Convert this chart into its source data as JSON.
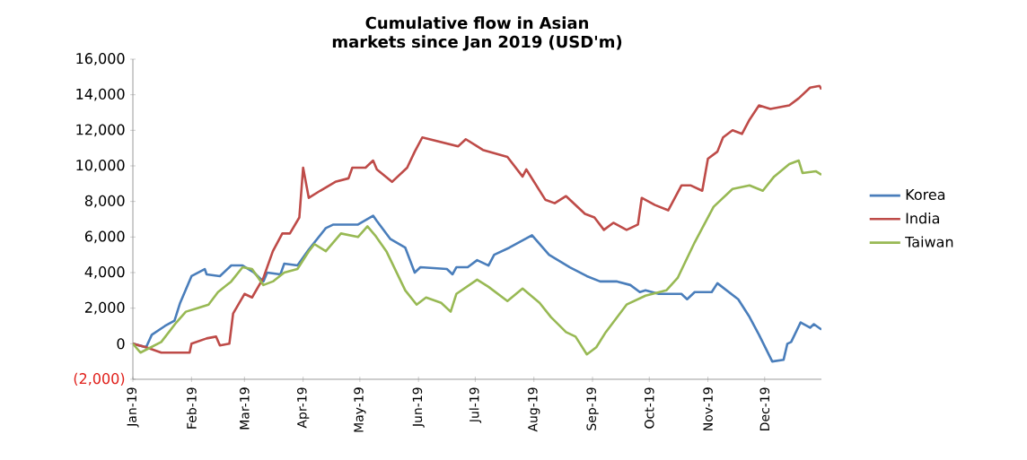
{
  "chart_data": {
    "type": "line",
    "title": "Cumulative flow in Asian markets since Jan 2019 (USD'm)",
    "x": [
      "2019-01-01",
      "2019-01-08",
      "2019-01-11",
      "2019-01-18",
      "2019-01-23",
      "2019-01-26",
      "2019-02-01",
      "2019-02-08",
      "2019-02-09",
      "2019-02-16",
      "2019-02-22",
      "2019-02-28",
      "2019-03-06",
      "2019-03-11",
      "2019-03-13",
      "2019-03-20",
      "2019-03-22",
      "2019-03-29",
      "2019-04-04",
      "2019-04-13",
      "2019-04-17",
      "2019-04-30",
      "2019-05-08",
      "2019-05-10",
      "2019-05-17",
      "2019-05-25",
      "2019-05-30",
      "2019-06-02",
      "2019-06-16",
      "2019-06-19",
      "2019-06-21",
      "2019-06-27",
      "2019-07-02",
      "2019-07-08",
      "2019-07-11",
      "2019-07-19",
      "2019-07-31",
      "2019-08-09",
      "2019-08-20",
      "2019-08-29",
      "2019-09-05",
      "2019-09-14",
      "2019-09-21",
      "2019-09-26",
      "2019-09-29",
      "2019-10-06",
      "2019-10-18",
      "2019-10-21",
      "2019-10-25",
      "2019-11-03",
      "2019-11-06",
      "2019-11-17",
      "2019-11-23",
      "2019-11-28",
      "2019-12-05",
      "2019-12-11",
      "2019-12-13",
      "2019-12-15",
      "2019-12-20",
      "2019-12-25",
      "2019-12-27",
      "2019-12-31"
    ],
    "series": [
      {
        "name": "Korea",
        "color": "#4a7ebb",
        "values": [
          0,
          -200,
          500,
          1000,
          1300,
          2300,
          3800,
          4200,
          3900,
          3800,
          4400,
          4400,
          4000,
          3500,
          4000,
          3900,
          4500,
          4400,
          5300,
          6500,
          6700,
          6700,
          7200,
          6900,
          5900,
          5400,
          4000,
          4300,
          4200,
          3900,
          4300,
          4300,
          4700,
          4400,
          5000,
          5400,
          6100,
          5000,
          4300,
          3800,
          3500,
          3500,
          3300,
          2900,
          3000,
          2800,
          2800,
          2500,
          2900,
          2900,
          3400,
          2500,
          1500,
          500,
          -1000,
          -900,
          0,
          100,
          1200,
          900,
          1100,
          800
        ]
      },
      {
        "name": "India",
        "color": "#be4b48",
        "x": [
          "2019-01-01",
          "2019-01-08",
          "2019-01-16",
          "2019-01-31",
          "2019-02-01",
          "2019-02-09",
          "2019-02-14",
          "2019-02-16",
          "2019-02-21",
          "2019-02-23",
          "2019-03-01",
          "2019-03-05",
          "2019-03-11",
          "2019-03-16",
          "2019-03-21",
          "2019-03-25",
          "2019-03-30",
          "2019-04-01",
          "2019-04-04",
          "2019-04-10",
          "2019-04-18",
          "2019-04-25",
          "2019-04-27",
          "2019-05-04",
          "2019-05-08",
          "2019-05-10",
          "2019-05-18",
          "2019-05-26",
          "2019-05-30",
          "2019-06-03",
          "2019-06-22",
          "2019-06-26",
          "2019-07-02",
          "2019-07-05",
          "2019-07-18",
          "2019-07-26",
          "2019-07-28",
          "2019-08-07",
          "2019-08-12",
          "2019-08-18",
          "2019-08-28",
          "2019-09-02",
          "2019-09-07",
          "2019-09-12",
          "2019-09-19",
          "2019-09-25",
          "2019-09-27",
          "2019-10-04",
          "2019-10-11",
          "2019-10-18",
          "2019-10-23",
          "2019-10-29",
          "2019-11-01",
          "2019-11-06",
          "2019-11-09",
          "2019-11-14",
          "2019-11-19",
          "2019-11-23",
          "2019-11-28",
          "2019-12-04",
          "2019-12-14",
          "2019-12-19",
          "2019-12-25",
          "2019-12-30",
          "2019-12-31"
        ],
        "values": [
          0,
          -200,
          -500,
          -500,
          0,
          300,
          400,
          -100,
          0,
          1700,
          2800,
          2600,
          3700,
          5200,
          6200,
          6200,
          7100,
          9900,
          8200,
          8600,
          9100,
          9300,
          9900,
          9900,
          10300,
          9800,
          9100,
          9900,
          10800,
          11600,
          11100,
          11500,
          11100,
          10900,
          10500,
          9400,
          9800,
          8100,
          7900,
          8300,
          7300,
          7100,
          6400,
          6800,
          6400,
          6700,
          8200,
          7800,
          7500,
          8900,
          8900,
          8600,
          10400,
          10800,
          11600,
          12000,
          11800,
          12600,
          13400,
          13200,
          13400,
          13800,
          14400,
          14500,
          14300
        ]
      },
      {
        "name": "Taiwan",
        "color": "#98b954",
        "x": [
          "2019-01-01",
          "2019-01-05",
          "2019-01-16",
          "2019-01-24",
          "2019-01-29",
          "2019-02-04",
          "2019-02-10",
          "2019-02-15",
          "2019-02-22",
          "2019-02-28",
          "2019-03-05",
          "2019-03-11",
          "2019-03-16",
          "2019-03-22",
          "2019-03-29",
          "2019-04-04",
          "2019-04-07",
          "2019-04-13",
          "2019-04-21",
          "2019-04-30",
          "2019-05-05",
          "2019-05-09",
          "2019-05-15",
          "2019-05-25",
          "2019-05-31",
          "2019-06-05",
          "2019-06-13",
          "2019-06-18",
          "2019-06-21",
          "2019-07-02",
          "2019-07-08",
          "2019-07-18",
          "2019-07-26",
          "2019-08-04",
          "2019-08-10",
          "2019-08-18",
          "2019-08-23",
          "2019-08-29",
          "2019-09-03",
          "2019-09-08",
          "2019-09-19",
          "2019-09-29",
          "2019-10-10",
          "2019-10-16",
          "2019-10-25",
          "2019-11-04",
          "2019-11-14",
          "2019-11-23",
          "2019-11-30",
          "2019-12-06",
          "2019-12-14",
          "2019-12-19",
          "2019-12-21",
          "2019-12-28",
          "2019-12-31"
        ],
        "values": [
          0,
          -500,
          100,
          1200,
          1800,
          2000,
          2200,
          2900,
          3500,
          4300,
          4200,
          3300,
          3500,
          4000,
          4200,
          5200,
          5600,
          5200,
          6200,
          6000,
          6600,
          6100,
          5200,
          3000,
          2200,
          2600,
          2300,
          1800,
          2800,
          3600,
          3200,
          2400,
          3100,
          2300,
          1500,
          650,
          400,
          -600,
          -200,
          650,
          2200,
          2700,
          3000,
          3700,
          5700,
          7700,
          8700,
          8900,
          8600,
          9400,
          10100,
          10300,
          9600,
          9700,
          9500
        ]
      }
    ],
    "xlim": [
      "2019-01-01",
      "2019-12-31"
    ],
    "xticks": [
      {
        "value": "2019-01-01",
        "label": "Jan-19"
      },
      {
        "value": "2019-02-01",
        "label": "Feb-19"
      },
      {
        "value": "2019-03-01",
        "label": "Mar-19"
      },
      {
        "value": "2019-04-01",
        "label": "Apr-19"
      },
      {
        "value": "2019-05-01",
        "label": "May-19"
      },
      {
        "value": "2019-06-01",
        "label": "Jun-19"
      },
      {
        "value": "2019-07-01",
        "label": "Jul-19"
      },
      {
        "value": "2019-08-01",
        "label": "Aug-19"
      },
      {
        "value": "2019-09-01",
        "label": "Sep-19"
      },
      {
        "value": "2019-10-01",
        "label": "Oct-19"
      },
      {
        "value": "2019-11-01",
        "label": "Nov-19"
      },
      {
        "value": "2019-12-01",
        "label": "Dec-19"
      }
    ],
    "ylim": [
      -2000,
      16000
    ],
    "yticks": [
      {
        "value": -2000,
        "label": "(2,000)"
      },
      {
        "value": 0,
        "label": "0"
      },
      {
        "value": 2000,
        "label": "2,000"
      },
      {
        "value": 4000,
        "label": "4,000"
      },
      {
        "value": 6000,
        "label": "6,000"
      },
      {
        "value": 8000,
        "label": "8,000"
      },
      {
        "value": 10000,
        "label": "10,000"
      },
      {
        "value": 12000,
        "label": "12,000"
      },
      {
        "value": 14000,
        "label": "14,000"
      },
      {
        "value": 16000,
        "label": "16,000"
      }
    ],
    "grid": false,
    "legend": "right",
    "marker": "none",
    "line_style": "solid"
  }
}
